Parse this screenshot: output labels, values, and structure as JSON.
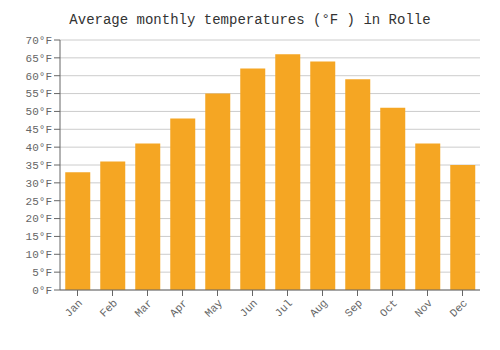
{
  "chart_data": {
    "type": "bar",
    "title": "Average monthly temperatures (°F ) in Rolle",
    "categories": [
      "Jan",
      "Feb",
      "Mar",
      "Apr",
      "May",
      "Jun",
      "Jul",
      "Aug",
      "Sep",
      "Oct",
      "Nov",
      "Dec"
    ],
    "values": [
      33,
      36,
      41,
      48,
      55,
      62,
      66,
      64,
      59,
      51,
      41,
      35
    ],
    "color": "#F5A623",
    "ylim": [
      0,
      70
    ],
    "yticks": [
      {
        "value": 0,
        "label": "0°F"
      },
      {
        "value": 5,
        "label": "5°F"
      },
      {
        "value": 10,
        "label": "10°F"
      },
      {
        "value": 15,
        "label": "15°F"
      },
      {
        "value": 20,
        "label": "20°F"
      },
      {
        "value": 25,
        "label": "25°F"
      },
      {
        "value": 30,
        "label": "30°F"
      },
      {
        "value": 35,
        "label": "35°F"
      },
      {
        "value": 40,
        "label": "40°F"
      },
      {
        "value": 45,
        "label": "45°F"
      },
      {
        "value": 50,
        "label": "50°F"
      },
      {
        "value": 55,
        "label": "55°F"
      },
      {
        "value": 60,
        "label": "60°F"
      },
      {
        "value": 65,
        "label": "65°F"
      },
      {
        "value": 70,
        "label": "70°F"
      }
    ],
    "grid": true
  }
}
